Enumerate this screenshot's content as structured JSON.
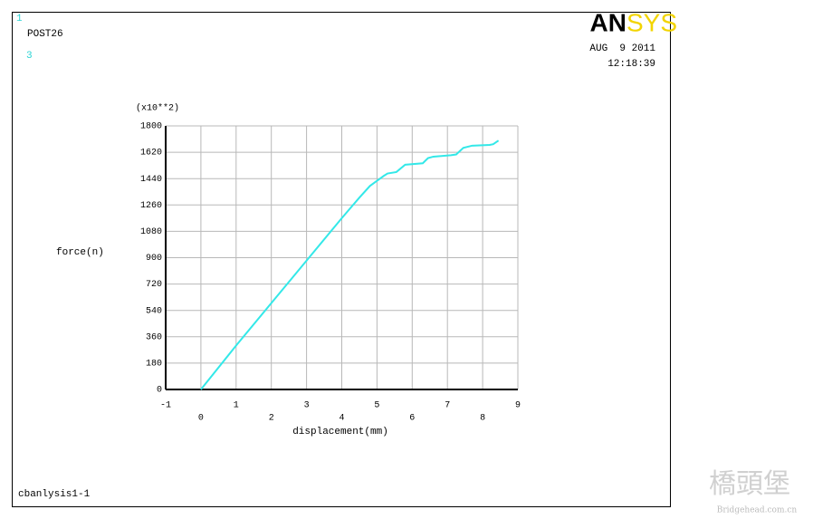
{
  "header": {
    "window_number": "1",
    "program": "POST26",
    "curve_number": "3",
    "logo_parts": [
      "AN",
      "SYS"
    ],
    "date": "AUG  9 2011",
    "time": "12:18:39"
  },
  "chart_data": {
    "type": "line",
    "x": [
      0,
      1,
      2,
      3,
      4,
      4.5,
      4.8,
      5.2,
      5.3,
      5.55,
      5.8,
      6.3,
      6.45,
      6.6,
      7.1,
      7.25,
      7.45,
      7.7,
      8.2,
      8.3,
      8.45
    ],
    "series": [
      {
        "color": "#33e8e8",
        "values": [
          0,
          300,
          590,
          880,
          1170,
          1310,
          1390,
          1460,
          1475,
          1485,
          1535,
          1545,
          1580,
          1590,
          1600,
          1605,
          1650,
          1665,
          1670,
          1675,
          1700
        ]
      }
    ],
    "xlim": [
      -1,
      9
    ],
    "xticks": [
      -1,
      0,
      1,
      2,
      3,
      4,
      5,
      6,
      7,
      8,
      9
    ],
    "ylim": [
      0,
      1800
    ],
    "yticks": [
      0,
      180,
      360,
      540,
      720,
      900,
      1080,
      1260,
      1440,
      1620,
      1800
    ],
    "y_multiplier": "(x10**2)",
    "ylabel": "force(n)",
    "xlabel": "displacement(mm)",
    "grid": true
  },
  "footer": {
    "file": "cbanlysis1-1"
  },
  "watermark": {
    "logo": "橋頭堡",
    "site": "Bridgehead.com.cn"
  }
}
